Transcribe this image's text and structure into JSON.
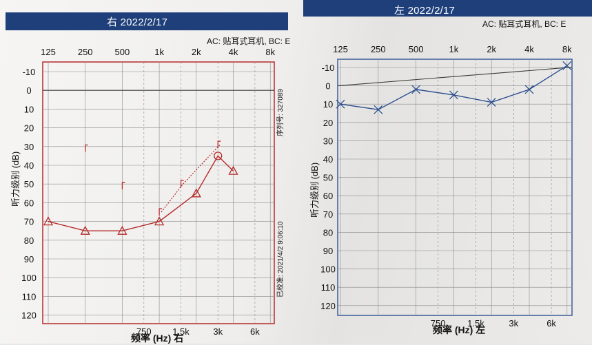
{
  "left_panel": {
    "header_title": "右 2022/2/17",
    "info": "AC: 贴耳式耳机, BC: E",
    "serial": "序列号: 327089",
    "calibrated": "已校准: 2021/4/2 9:06:10",
    "ylabel": "听力级别 (dB)",
    "xlabel": "频率 (Hz) 右",
    "freq_top": [
      "125",
      "250",
      "500",
      "1k",
      "2k",
      "4k",
      "8k"
    ],
    "freq_bottom": [
      "750",
      "1.5k",
      "3k",
      "6k"
    ]
  },
  "right_panel": {
    "header_title": "左 2022/2/17",
    "info": "AC: 贴耳式耳机, BC: E",
    "ylabel": "听力级别 (dB)",
    "xlabel": "频率 (Hz) 左",
    "freq_top": [
      "125",
      "250",
      "500",
      "1k",
      "2k",
      "4k",
      "8k"
    ],
    "freq_bottom": [
      "750",
      "1.5k",
      "3k",
      "6k"
    ]
  },
  "chart_data": [
    {
      "type": "line",
      "ear": "right",
      "x": [
        "125",
        "250",
        "500",
        "1k",
        "2k",
        "4k",
        "8k"
      ],
      "ylim": [
        -15,
        120
      ],
      "ytick_labels": [
        "-10",
        "0",
        "10",
        "20",
        "30",
        "40",
        "50",
        "60",
        "70",
        "80",
        "90",
        "100",
        "110",
        "120"
      ],
      "series": [
        {
          "kind": "air-conduction",
          "marker": "triangle",
          "color": "#b52a2a",
          "points": [
            [
              "125",
              70
            ],
            [
              "250",
              75
            ],
            [
              "500",
              75
            ],
            [
              "1k",
              70
            ],
            [
              "2k",
              55
            ],
            [
              "3k",
              35
            ],
            [
              "4k",
              43
            ]
          ]
        },
        {
          "kind": "bone-conduction",
          "marker": "bracket",
          "color": "#b52a2a",
          "points": [
            [
              "250",
              31
            ],
            [
              "500",
              51
            ],
            [
              "1k",
              65
            ],
            [
              "1.5k",
              50
            ],
            [
              "3k",
              29
            ]
          ]
        }
      ]
    },
    {
      "type": "line",
      "ear": "left",
      "x": [
        "125",
        "250",
        "500",
        "1k",
        "2k",
        "4k",
        "8k"
      ],
      "ylim": [
        -15,
        120
      ],
      "ytick_labels": [
        "-10",
        "0",
        "10",
        "20",
        "30",
        "40",
        "50",
        "60",
        "70",
        "80",
        "90",
        "100",
        "110",
        "120"
      ],
      "series": [
        {
          "kind": "air-conduction",
          "marker": "x",
          "color": "#2b4f8f",
          "points": [
            [
              "125",
              10
            ],
            [
              "250",
              13
            ],
            [
              "500",
              2
            ],
            [
              "1k",
              5
            ],
            [
              "2k",
              9
            ],
            [
              "4k",
              2
            ],
            [
              "8k",
              -11
            ]
          ]
        }
      ]
    }
  ]
}
